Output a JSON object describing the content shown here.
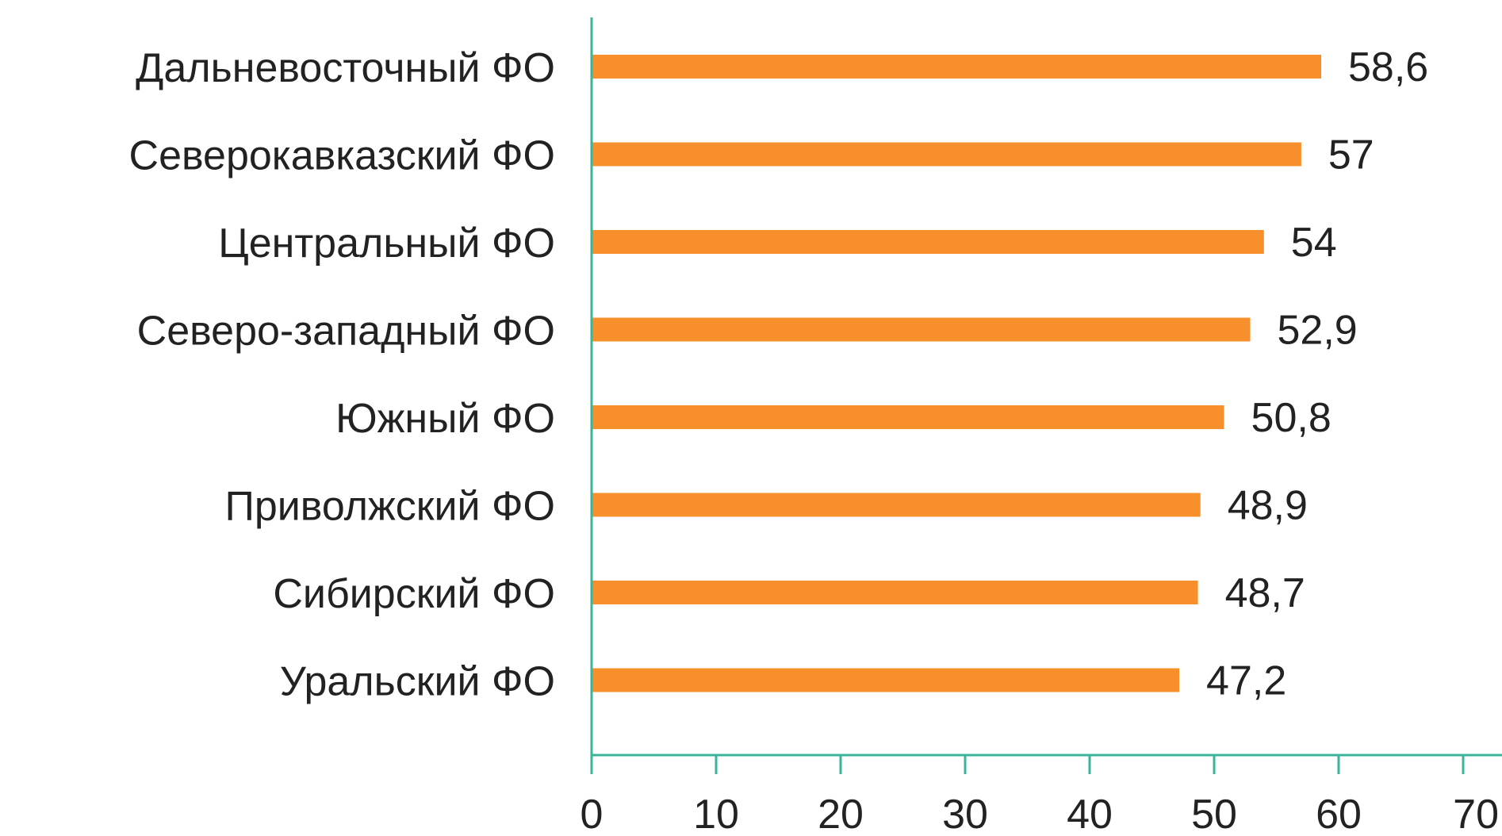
{
  "chart_data": {
    "type": "bar",
    "orientation": "horizontal",
    "categories": [
      "Дальневосточный ФО",
      "Северокавказский ФО",
      "Центральный ФО",
      "Северо-западный ФО",
      "Южный ФО",
      "Приволжский ФО",
      "Сибирский ФО",
      "Уральский ФО"
    ],
    "values": [
      58.6,
      57,
      54,
      52.9,
      50.8,
      48.9,
      48.7,
      47.2
    ],
    "value_labels": [
      "58,6",
      "57",
      "54",
      "52,9",
      "50,8",
      "48,9",
      "48,7",
      "47,2"
    ],
    "x_ticks": [
      "0",
      "10",
      "20",
      "30",
      "40",
      "50",
      "60",
      "70"
    ],
    "xlim": [
      0,
      70
    ],
    "title": "",
    "xlabel": "",
    "ylabel": "",
    "grid": false,
    "legend": "none",
    "colors": {
      "bar": "#f7902c",
      "axis": "#3bb59a",
      "text": "#222222"
    }
  }
}
